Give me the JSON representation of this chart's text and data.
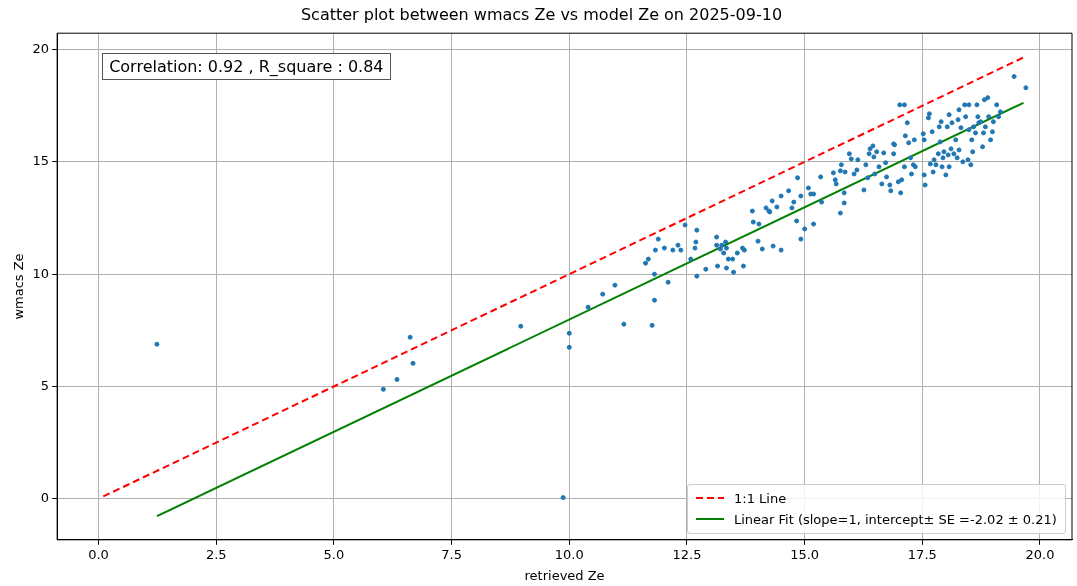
{
  "chart_data": {
    "type": "scatter",
    "title": "Scatter plot between wmacs Ze vs model Ze on 2025-09-10",
    "xlabel": "retrieved Ze",
    "ylabel": "wmacs Ze",
    "xlim": [
      -0.88,
      20.68
    ],
    "ylim": [
      -1.83,
      20.73
    ],
    "xticks": [
      {
        "value": 0,
        "label": "0.0"
      },
      {
        "value": 2.5,
        "label": "2.5"
      },
      {
        "value": 5,
        "label": "5.0"
      },
      {
        "value": 7.5,
        "label": "7.5"
      },
      {
        "value": 10,
        "label": "10.0"
      },
      {
        "value": 12.5,
        "label": "12.5"
      },
      {
        "value": 15,
        "label": "15.0"
      },
      {
        "value": 17.5,
        "label": "17.5"
      },
      {
        "value": 20,
        "label": "20.0"
      }
    ],
    "yticks": [
      0,
      5,
      10,
      15,
      20
    ],
    "grid": true,
    "legend": "bottom right",
    "annotations": [
      "Correlation: 0.92 , R_square : 0.84"
    ],
    "series": [
      {
        "type": "scatter",
        "color": "#1f77b4",
        "marker": "circle",
        "x": [
          1.24,
          6.05,
          6.34,
          6.62,
          6.68,
          8.97,
          10.0,
          10.0,
          9.87,
          10.4,
          11.16,
          10.71,
          10.97,
          11.62,
          11.68,
          11.76,
          11.81,
          11.81,
          11.83,
          11.89,
          12.02,
          12.1,
          12.2,
          12.31,
          12.37,
          12.46,
          12.58,
          12.67,
          12.69,
          12.71,
          12.71,
          12.9,
          13.13,
          13.13,
          13.15,
          13.21,
          13.24,
          13.28,
          13.32,
          13.34,
          13.34,
          13.38,
          13.47,
          13.49,
          13.57,
          13.68,
          13.72,
          13.7,
          13.89,
          13.91,
          14.01,
          14.03,
          14.1,
          14.18,
          14.24,
          14.26,
          14.31,
          14.33,
          14.41,
          14.5,
          14.5,
          14.66,
          14.73,
          14.77,
          14.83,
          14.85,
          14.92,
          14.92,
          15.0,
          15.08,
          15.13,
          15.19,
          15.19,
          15.34,
          15.36,
          15.61,
          15.65,
          15.67,
          15.76,
          15.76,
          15.78,
          15.84,
          15.84,
          15.86,
          15.95,
          15.99,
          16.05,
          16.11,
          16.13,
          16.26,
          16.3,
          16.34,
          16.37,
          16.39,
          16.45,
          16.47,
          16.49,
          16.53,
          16.58,
          16.64,
          16.68,
          16.72,
          16.74,
          16.81,
          16.83,
          16.89,
          16.89,
          16.91,
          16.99,
          17.04,
          17.02,
          17.12,
          17.06,
          17.12,
          17.14,
          17.18,
          17.21,
          17.25,
          17.27,
          17.31,
          17.33,
          17.35,
          17.52,
          17.54,
          17.54,
          17.56,
          17.63,
          17.65,
          17.67,
          17.71,
          17.73,
          17.75,
          17.79,
          17.84,
          17.86,
          17.88,
          17.9,
          17.92,
          17.94,
          17.96,
          18.0,
          18.03,
          18.05,
          18.07,
          18.07,
          18.11,
          18.13,
          18.17,
          18.21,
          18.24,
          18.26,
          18.28,
          18.28,
          18.32,
          18.36,
          18.4,
          18.42,
          18.47,
          18.49,
          18.49,
          18.53,
          18.55,
          18.57,
          18.59,
          18.63,
          18.66,
          18.68,
          18.7,
          18.74,
          18.78,
          18.8,
          18.82,
          18.84,
          18.89,
          18.91,
          18.95,
          18.99,
          19.01,
          19.08,
          19.12,
          19.16,
          19.45,
          19.7
        ],
        "values": [
          6.88,
          4.87,
          5.31,
          7.19,
          6.03,
          7.68,
          7.37,
          6.74,
          0.05,
          8.53,
          7.77,
          9.11,
          9.51,
          10.49,
          10.67,
          7.72,
          8.84,
          10.0,
          11.07,
          11.56,
          11.16,
          9.64,
          11.07,
          11.29,
          11.07,
          12.19,
          10.67,
          11.16,
          11.43,
          11.96,
          9.91,
          10.22,
          11.65,
          11.29,
          10.36,
          11.12,
          11.29,
          10.94,
          11.43,
          11.16,
          10.27,
          10.67,
          10.67,
          10.09,
          10.94,
          11.16,
          11.07,
          10.36,
          12.81,
          12.32,
          11.47,
          12.23,
          11.12,
          12.95,
          12.81,
          12.77,
          13.26,
          11.25,
          12.99,
          11.07,
          13.48,
          13.71,
          12.95,
          13.21,
          12.37,
          14.29,
          11.56,
          13.48,
          12.01,
          13.84,
          13.57,
          13.57,
          12.23,
          14.33,
          13.21,
          14.51,
          14.2,
          14.02,
          12.72,
          14.6,
          14.87,
          13.62,
          13.17,
          14.55,
          15.36,
          15.13,
          14.46,
          14.64,
          15.09,
          13.75,
          14.87,
          14.29,
          15.36,
          15.58,
          15.71,
          15.22,
          14.46,
          15.45,
          14.78,
          14.02,
          15.4,
          14.96,
          14.33,
          13.97,
          13.71,
          15.8,
          15.36,
          15.76,
          14.11,
          13.62,
          17.54,
          17.54,
          14.2,
          14.78,
          16.16,
          16.74,
          15.85,
          15.18,
          14.46,
          14.87,
          15.98,
          14.78,
          16.25,
          15.98,
          14.42,
          13.97,
          16.96,
          17.14,
          14.91,
          16.34,
          14.55,
          15.09,
          14.87,
          15.36,
          16.56,
          15.89,
          16.79,
          14.78,
          15.18,
          15.45,
          14.42,
          16.56,
          15.31,
          17.1,
          14.78,
          15.58,
          16.74,
          15.36,
          15.98,
          15.18,
          16.88,
          15.53,
          17.32,
          16.52,
          15.0,
          17.54,
          17.01,
          15.09,
          17.54,
          16.43,
          14.87,
          15.98,
          15.45,
          16.56,
          16.29,
          17.54,
          17.01,
          16.74,
          16.79,
          15.67,
          16.29,
          17.77,
          16.56,
          17.86,
          17.01,
          15.98,
          16.34,
          16.79,
          17.54,
          17.01,
          17.23,
          18.8,
          18.3
        ]
      },
      {
        "type": "line",
        "name": "1:1 Line",
        "color": "#ff0000",
        "line_style": "dashed",
        "marker": "none",
        "x": [
          0.1,
          19.65
        ],
        "values": [
          0.1,
          19.65
        ]
      },
      {
        "type": "line",
        "name": "Linear Fit (slope=1, intercept± SE =-2.02 ± 0.21)",
        "color": "#008000",
        "line_style": "solid",
        "marker": "none",
        "x": [
          1.24,
          19.65
        ],
        "values": [
          -0.78,
          17.63
        ]
      }
    ]
  }
}
